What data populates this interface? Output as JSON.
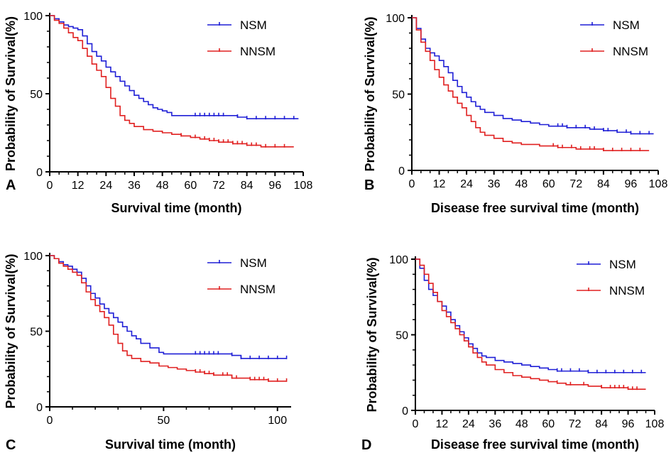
{
  "figure": {
    "description_labels": [
      "A",
      "B",
      "C",
      "D"
    ]
  },
  "colors": {
    "nsm": "#1f1fd6",
    "nnsm": "#e02020",
    "axis": "#000000"
  },
  "chart_data": [
    {
      "panel": "A",
      "type": "line",
      "title": "",
      "xlabel": "Survival time (month)",
      "ylabel": "Probability of Survival(%)",
      "xlim": [
        0,
        108
      ],
      "ylim": [
        0,
        100
      ],
      "xticks": [
        0,
        12,
        24,
        36,
        48,
        60,
        72,
        84,
        96,
        108
      ],
      "yticks": [
        0,
        50,
        100
      ],
      "legend": "top-right",
      "series": [
        {
          "name": "NSM",
          "color": "#1f1fd6",
          "x": [
            0,
            2,
            4,
            6,
            8,
            10,
            12,
            14,
            16,
            18,
            20,
            22,
            24,
            26,
            28,
            30,
            32,
            34,
            36,
            38,
            40,
            42,
            44,
            46,
            48,
            50,
            52,
            60,
            72,
            80,
            84,
            96,
            106
          ],
          "y": [
            100,
            98,
            96,
            94,
            93,
            92,
            91,
            87,
            82,
            77,
            74,
            71,
            67,
            64,
            61,
            58,
            55,
            52,
            49,
            47,
            45,
            43,
            41,
            40,
            39,
            38,
            36,
            36,
            36,
            35,
            34,
            34,
            34
          ],
          "censor_x": [
            62,
            64,
            66,
            68,
            70,
            72,
            74,
            80,
            84,
            88,
            92,
            96,
            100,
            104
          ]
        },
        {
          "name": "NNSM",
          "color": "#e02020",
          "x": [
            0,
            2,
            4,
            6,
            8,
            10,
            12,
            14,
            16,
            18,
            20,
            22,
            24,
            26,
            28,
            30,
            32,
            34,
            36,
            40,
            44,
            48,
            52,
            56,
            60,
            64,
            68,
            72,
            78,
            84,
            90,
            96,
            104
          ],
          "y": [
            100,
            97,
            95,
            92,
            89,
            86,
            84,
            79,
            74,
            69,
            65,
            61,
            54,
            47,
            42,
            36,
            33,
            31,
            29,
            27,
            26,
            25,
            24,
            23,
            22,
            21,
            20,
            19,
            18,
            17,
            16,
            16,
            16
          ],
          "censor_x": [
            56,
            62,
            66,
            68,
            70,
            72,
            74,
            76,
            78,
            80,
            82,
            84,
            86,
            88,
            92,
            96,
            100
          ]
        }
      ]
    },
    {
      "panel": "B",
      "type": "line",
      "title": "",
      "xlabel": "Disease free survival time (month)",
      "ylabel": "Probability of Survival(%)",
      "xlim": [
        0,
        108
      ],
      "ylim": [
        0,
        100
      ],
      "xticks": [
        0,
        12,
        24,
        36,
        48,
        60,
        72,
        84,
        96,
        108
      ],
      "yticks": [
        0,
        50,
        100
      ],
      "legend": "top-right",
      "series": [
        {
          "name": "NSM",
          "color": "#1f1fd6",
          "x": [
            0,
            2,
            4,
            6,
            8,
            10,
            12,
            14,
            16,
            18,
            20,
            22,
            24,
            26,
            28,
            30,
            32,
            36,
            40,
            44,
            48,
            52,
            56,
            60,
            64,
            68,
            72,
            78,
            84,
            90,
            96,
            106
          ],
          "y": [
            100,
            93,
            86,
            80,
            77,
            75,
            72,
            68,
            64,
            59,
            55,
            51,
            48,
            45,
            42,
            40,
            38,
            36,
            34,
            33,
            32,
            31,
            30,
            29,
            29,
            28,
            28,
            27,
            26,
            25,
            24,
            24
          ],
          "censor_x": [
            64,
            66,
            68,
            72,
            76,
            80,
            84,
            86,
            90,
            94,
            96,
            100,
            104
          ]
        },
        {
          "name": "NNSM",
          "color": "#e02020",
          "x": [
            0,
            2,
            4,
            6,
            8,
            10,
            12,
            14,
            16,
            18,
            20,
            22,
            24,
            26,
            28,
            30,
            32,
            36,
            40,
            44,
            48,
            52,
            56,
            60,
            64,
            68,
            72,
            78,
            84,
            90,
            96,
            104
          ],
          "y": [
            100,
            92,
            84,
            78,
            72,
            66,
            61,
            56,
            52,
            48,
            44,
            41,
            36,
            32,
            28,
            25,
            23,
            21,
            19,
            18,
            17,
            17,
            16,
            16,
            15,
            15,
            14,
            14,
            13,
            13,
            13,
            13
          ],
          "censor_x": [
            62,
            64,
            66,
            70,
            74,
            78,
            80,
            84,
            88,
            92,
            96,
            100
          ]
        }
      ]
    },
    {
      "panel": "C",
      "type": "line",
      "title": "",
      "xlabel": "Survival time (month)",
      "ylabel": "Probability of Survival(%)",
      "xlim": [
        0,
        106
      ],
      "ylim": [
        0,
        100
      ],
      "xticks": [
        0,
        50,
        100
      ],
      "yticks": [
        0,
        50,
        100
      ],
      "legend": "top-right",
      "series": [
        {
          "name": "NSM",
          "color": "#1f1fd6",
          "x": [
            0,
            2,
            4,
            6,
            8,
            10,
            12,
            14,
            16,
            18,
            20,
            22,
            24,
            26,
            28,
            30,
            32,
            34,
            36,
            38,
            40,
            44,
            48,
            50,
            60,
            70,
            80,
            84,
            96,
            104
          ],
          "y": [
            100,
            98,
            96,
            94,
            93,
            91,
            89,
            85,
            80,
            75,
            72,
            68,
            65,
            62,
            59,
            56,
            53,
            50,
            47,
            45,
            42,
            39,
            36,
            35,
            35,
            35,
            34,
            32,
            32,
            32
          ],
          "censor_x": [
            64,
            66,
            68,
            70,
            72,
            74,
            80,
            84,
            88,
            92,
            96,
            100,
            104
          ]
        },
        {
          "name": "NNSM",
          "color": "#e02020",
          "x": [
            0,
            2,
            4,
            6,
            8,
            10,
            12,
            14,
            16,
            18,
            20,
            22,
            24,
            26,
            28,
            30,
            32,
            34,
            36,
            40,
            44,
            48,
            52,
            56,
            60,
            64,
            68,
            72,
            80,
            88,
            96,
            104
          ],
          "y": [
            100,
            98,
            95,
            93,
            91,
            89,
            87,
            82,
            76,
            71,
            67,
            63,
            59,
            54,
            48,
            42,
            37,
            34,
            32,
            30,
            29,
            27,
            26,
            25,
            24,
            23,
            22,
            21,
            19,
            18,
            17,
            17
          ],
          "censor_x": [
            64,
            66,
            68,
            70,
            72,
            76,
            78,
            80,
            82,
            88,
            90,
            92,
            94,
            96,
            100,
            104
          ]
        }
      ]
    },
    {
      "panel": "D",
      "type": "line",
      "title": "",
      "xlabel": "Disease free survival time (month)",
      "ylabel": "Probability of Survival(%)",
      "xlim": [
        0,
        108
      ],
      "ylim": [
        0,
        100
      ],
      "xticks": [
        0,
        12,
        24,
        36,
        48,
        60,
        72,
        84,
        96,
        108
      ],
      "yticks": [
        0,
        50,
        100
      ],
      "legend": "top-right",
      "series": [
        {
          "name": "NSM",
          "color": "#1f1fd6",
          "x": [
            0,
            2,
            4,
            6,
            8,
            10,
            12,
            14,
            16,
            18,
            20,
            22,
            24,
            26,
            28,
            30,
            32,
            36,
            40,
            44,
            48,
            52,
            56,
            60,
            64,
            68,
            72,
            78,
            84,
            90,
            96,
            104
          ],
          "y": [
            100,
            94,
            86,
            80,
            76,
            72,
            69,
            65,
            60,
            56,
            52,
            48,
            44,
            41,
            38,
            36,
            35,
            33,
            32,
            31,
            30,
            29,
            28,
            27,
            26,
            26,
            26,
            25,
            25,
            25,
            25,
            25
          ],
          "censor_x": [
            64,
            66,
            70,
            74,
            78,
            82,
            86,
            90,
            94,
            98,
            102
          ]
        },
        {
          "name": "NNSM",
          "color": "#e02020",
          "x": [
            0,
            2,
            4,
            6,
            8,
            10,
            12,
            14,
            16,
            18,
            20,
            22,
            24,
            26,
            28,
            30,
            32,
            36,
            40,
            44,
            48,
            52,
            56,
            60,
            64,
            68,
            72,
            78,
            84,
            90,
            96,
            104
          ],
          "y": [
            100,
            96,
            90,
            84,
            78,
            72,
            66,
            62,
            58,
            54,
            50,
            46,
            42,
            38,
            35,
            32,
            30,
            27,
            25,
            23,
            22,
            21,
            20,
            19,
            18,
            17,
            17,
            16,
            15,
            15,
            14,
            14
          ],
          "censor_x": [
            64,
            70,
            76,
            84,
            88,
            90,
            92,
            94,
            96,
            98,
            100
          ]
        }
      ]
    }
  ]
}
